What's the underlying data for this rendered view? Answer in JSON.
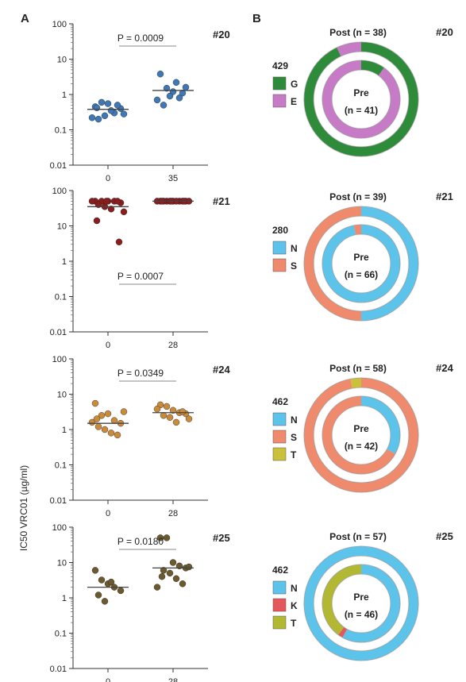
{
  "panels": {
    "a": "A",
    "b": "B"
  },
  "ylabel": "IC50 VRC01 (µg/ml)",
  "chart_data": [
    {
      "type": "scatter",
      "id": "#20",
      "yscale": "log",
      "ylim": [
        0.01,
        100
      ],
      "yticks": [
        "100",
        "10",
        "1",
        "0.1",
        "0.01"
      ],
      "categories": [
        "0",
        "35"
      ],
      "p_label": "P = 0.0009",
      "color": "#3f78b5",
      "medians": [
        0.38,
        1.3
      ],
      "groups": [
        [
          0.45,
          0.6,
          0.55,
          0.3,
          0.4,
          0.2,
          0.25,
          0.35,
          0.5,
          0.22,
          0.28,
          0.42
        ],
        [
          3.8,
          1.5,
          1.2,
          0.8,
          1.6,
          0.5,
          0.9,
          2.2,
          1.1,
          0.7
        ]
      ]
    },
    {
      "type": "scatter",
      "id": "#21",
      "yscale": "log",
      "ylim": [
        0.01,
        100
      ],
      "yticks": [
        "100",
        "10",
        "1",
        "0.1",
        "0.01"
      ],
      "categories": [
        "0",
        "28"
      ],
      "p_label": "P = 0.0007",
      "color": "#8b1d1d",
      "medians": [
        35,
        50
      ],
      "groups": [
        [
          50,
          50,
          50,
          50,
          45,
          40,
          35,
          30,
          50,
          50,
          25,
          14,
          3.5,
          50
        ],
        [
          50,
          50,
          50,
          50,
          50,
          50,
          50,
          50,
          50,
          50,
          50,
          50,
          50,
          50
        ]
      ]
    },
    {
      "type": "scatter",
      "id": "#24",
      "yscale": "log",
      "ylim": [
        0.01,
        100
      ],
      "yticks": [
        "100",
        "10",
        "1",
        "0.1",
        "0.01"
      ],
      "categories": [
        "0",
        "28"
      ],
      "p_label": "P = 0.0349",
      "color": "#c98a3c",
      "medians": [
        1.5,
        3
      ],
      "groups": [
        [
          5.5,
          2.5,
          2.8,
          1.8,
          1.5,
          1.2,
          1.0,
          0.8,
          0.7,
          1.6,
          3.2,
          2.0
        ],
        [
          5,
          4.5,
          3.5,
          3.0,
          2.8,
          2.5,
          2.2,
          1.6,
          3.2,
          3.8,
          2.0
        ]
      ]
    },
    {
      "type": "scatter",
      "id": "#25",
      "yscale": "log",
      "ylim": [
        0.01,
        100
      ],
      "yticks": [
        "100",
        "10",
        "1",
        "0.1",
        "0.01"
      ],
      "categories": [
        "0",
        "28"
      ],
      "p_label": "P = 0.0180",
      "color": "#6b5a2e",
      "medians": [
        2,
        7
      ],
      "groups": [
        [
          6,
          3.2,
          2.5,
          2.0,
          1.6,
          1.2,
          0.8,
          2.8
        ],
        [
          50,
          50,
          10,
          8,
          7,
          6,
          5,
          3.5,
          2.5,
          2.0,
          7.5,
          4
        ]
      ]
    },
    {
      "type": "pie",
      "id": "#20",
      "position": "429",
      "post_label": "Post (n = 38)",
      "pre_label": "Pre",
      "pre_n": "(n = 41)",
      "categories": [
        "G",
        "E"
      ],
      "colors": [
        "#2e8b3a",
        "#c77ac6"
      ],
      "post": [
        0.93,
        0.07
      ],
      "pre": [
        0.1,
        0.9
      ]
    },
    {
      "type": "pie",
      "id": "#21",
      "position": "280",
      "post_label": "Post (n = 39)",
      "pre_label": "Pre",
      "pre_n": "(n = 66)",
      "categories": [
        "N",
        "S"
      ],
      "colors": [
        "#5cc4ea",
        "#f08a6c"
      ],
      "post": [
        0.5,
        0.5
      ],
      "pre": [
        0.97,
        0.03
      ]
    },
    {
      "type": "pie",
      "id": "#24",
      "position": "462",
      "post_label": "Post (n = 58)",
      "pre_label": "Pre",
      "pre_n": "(n = 42)",
      "categories": [
        "N",
        "S",
        "T"
      ],
      "colors": [
        "#5cc4ea",
        "#f08a6c",
        "#c9c13a"
      ],
      "post": [
        0.0,
        0.97,
        0.03
      ],
      "pre": [
        0.33,
        0.67,
        0.0
      ]
    },
    {
      "type": "pie",
      "id": "#25",
      "position": "462",
      "post_label": "Post (n = 57)",
      "pre_label": "Pre",
      "pre_n": "(n = 46)",
      "categories": [
        "N",
        "K",
        "T"
      ],
      "colors": [
        "#5cc4ea",
        "#e4585b",
        "#b2b832"
      ],
      "post": [
        1.0,
        0.0,
        0.0
      ],
      "pre": [
        0.58,
        0.02,
        0.4
      ]
    }
  ]
}
